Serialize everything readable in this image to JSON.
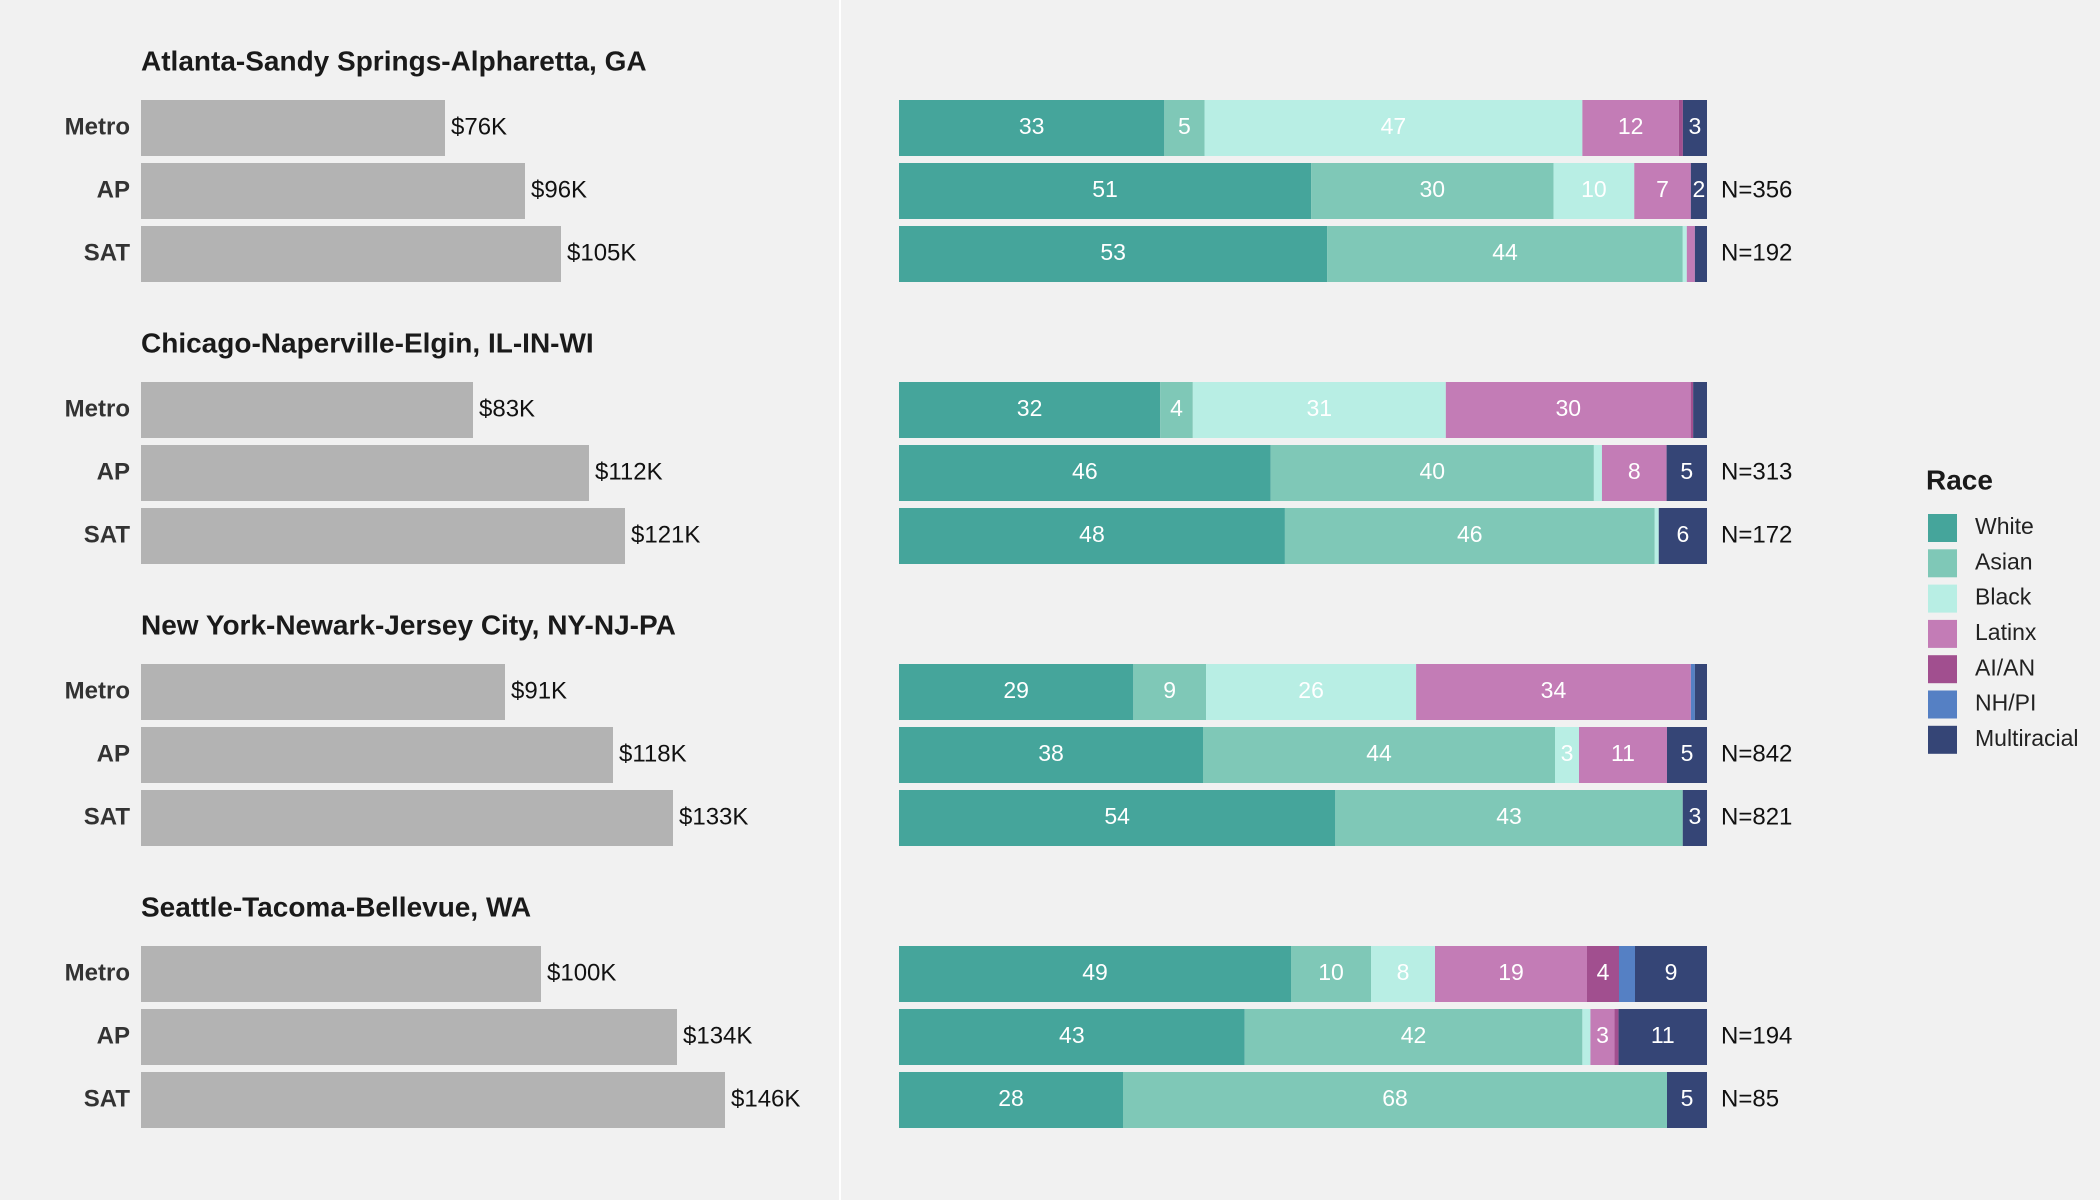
{
  "legend": {
    "title": "Race",
    "items": [
      {
        "name": "White",
        "color": "#45a59b"
      },
      {
        "name": "Asian",
        "color": "#7fc8b7"
      },
      {
        "name": "Black",
        "color": "#b8eee4"
      },
      {
        "name": "Latinx",
        "color": "#c37cb6"
      },
      {
        "name": "AI/AN",
        "color": "#a14f8f"
      },
      {
        "name": "NH/PI",
        "color": "#5580c4"
      },
      {
        "name": "Multiracial",
        "color": "#354576"
      }
    ]
  },
  "chart_data": {
    "type": "bar",
    "panels": [
      "median income",
      "race composition"
    ],
    "income_max": 146,
    "regions": [
      {
        "title": "Atlanta-Sandy Springs-Alpharetta, GA",
        "rows": [
          {
            "label": "Metro",
            "income": 76,
            "income_label": "$76K",
            "n": "",
            "race": [
              33,
              5,
              47,
              12,
              0.5,
              0,
              3
            ],
            "labels": [
              "33",
              "5",
              "47",
              "12",
              "",
              "",
              "3"
            ]
          },
          {
            "label": "AP",
            "income": 96,
            "income_label": "$96K",
            "n": "N=356",
            "race": [
              51,
              30,
              10,
              7,
              0,
              0,
              2
            ],
            "labels": [
              "51",
              "30",
              "10",
              "7",
              "",
              "",
              "2"
            ]
          },
          {
            "label": "SAT",
            "income": 105,
            "income_label": "$105K",
            "n": "N=192",
            "race": [
              53,
              44,
              0.5,
              1,
              0,
              0,
              1.5
            ],
            "labels": [
              "53",
              "44",
              "",
              "",
              "",
              "",
              ""
            ]
          }
        ]
      },
      {
        "title": "Chicago-Naperville-Elgin, IL-IN-WI",
        "rows": [
          {
            "label": "Metro",
            "income": 83,
            "income_label": "$83K",
            "n": "",
            "race": [
              32,
              4,
              31,
              30,
              0.3,
              0,
              1.7
            ],
            "labels": [
              "32",
              "4",
              "31",
              "30",
              "",
              "",
              ""
            ]
          },
          {
            "label": "AP",
            "income": 112,
            "income_label": "$112K",
            "n": "N=313",
            "race": [
              46,
              40,
              1,
              8,
              0,
              0,
              5
            ],
            "labels": [
              "46",
              "40",
              "",
              "8",
              "",
              "",
              "5"
            ]
          },
          {
            "label": "SAT",
            "income": 121,
            "income_label": "$121K",
            "n": "N=172",
            "race": [
              48,
              46,
              0.5,
              0,
              0,
              0,
              6
            ],
            "labels": [
              "48",
              "46",
              "",
              "",
              "",
              "",
              "6"
            ]
          }
        ]
      },
      {
        "title": "New York-Newark-Jersey City, NY-NJ-PA",
        "rows": [
          {
            "label": "Metro",
            "income": 91,
            "income_label": "$91K",
            "n": "",
            "race": [
              29,
              9,
              26,
              34,
              0,
              0.5,
              1.5
            ],
            "labels": [
              "29",
              "9",
              "26",
              "34",
              "",
              "",
              ""
            ]
          },
          {
            "label": "AP",
            "income": 118,
            "income_label": "$118K",
            "n": "N=842",
            "race": [
              38,
              44,
              3,
              11,
              0,
              0,
              5
            ],
            "labels": [
              "38",
              "44",
              "3",
              "11",
              "",
              "",
              "5"
            ]
          },
          {
            "label": "SAT",
            "income": 133,
            "income_label": "$133K",
            "n": "N=821",
            "race": [
              54,
              43,
              0,
              0,
              0,
              0,
              3
            ],
            "labels": [
              "54",
              "43",
              "",
              "",
              "",
              "",
              "3"
            ]
          }
        ]
      },
      {
        "title": "Seattle-Tacoma-Bellevue, WA",
        "rows": [
          {
            "label": "Metro",
            "income": 100,
            "income_label": "$100K",
            "n": "",
            "race": [
              49,
              10,
              8,
              19,
              4,
              2,
              9
            ],
            "labels": [
              "49",
              "10",
              "8",
              "19",
              "4",
              "",
              "9"
            ]
          },
          {
            "label": "AP",
            "income": 134,
            "income_label": "$134K",
            "n": "N=194",
            "race": [
              43,
              42,
              1,
              3,
              0.5,
              0,
              11
            ],
            "labels": [
              "43",
              "42",
              "",
              "3",
              "",
              "",
              "11"
            ]
          },
          {
            "label": "SAT",
            "income": 146,
            "income_label": "$146K",
            "n": "N=85",
            "race": [
              28,
              68,
              0,
              0,
              0,
              0,
              5
            ],
            "labels": [
              "28",
              "68",
              "",
              "",
              "",
              "",
              "5"
            ]
          }
        ]
      }
    ]
  }
}
